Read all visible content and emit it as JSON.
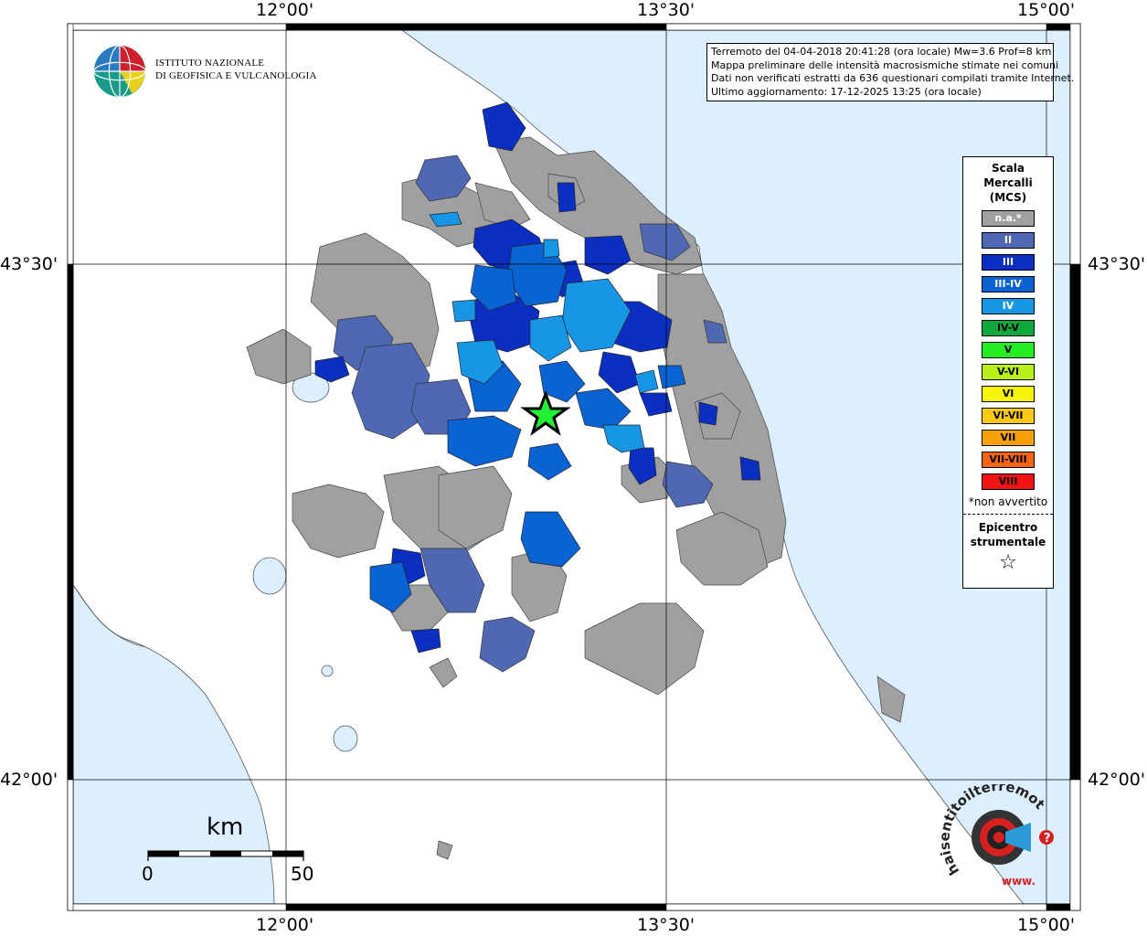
{
  "map": {
    "lon_labels": [
      "12°00'",
      "13°30'",
      "15°00'"
    ],
    "lat_labels": [
      "43°30'",
      "42°00'"
    ],
    "colors": {
      "sea": "#dcefff",
      "na": "#a0a0a0",
      "II": "#4f68b4",
      "III": "#0a2fc2",
      "III-IV": "#0a63d2",
      "IV": "#1796e6",
      "epicenter_fill": "#22ee33"
    }
  },
  "info": {
    "line1": "Terremoto del 04-04-2018 20:41:28 (ora locale) Mw=3.6 Prof=8 km",
    "line2": "Mappa preliminare delle intensità macrosismiche stimate nei comuni",
    "line3": "Dati non verificati estratti da 636 questionari compilati tramite Internet.",
    "line4": "Ultimo aggiornamento: 17-12-2025 13:25 (ora locale)"
  },
  "legend": {
    "title_lines": [
      "Scala",
      "Mercalli",
      "(MCS)"
    ],
    "items": [
      {
        "label": "n.a.*",
        "color": "#a0a0a0",
        "text_color": "#ffffff"
      },
      {
        "label": "II",
        "color": "#4f68b4",
        "text_color": "#ffffff"
      },
      {
        "label": "III",
        "color": "#0a2fc2",
        "text_color": "#ffffff"
      },
      {
        "label": "III-IV",
        "color": "#0a63d2",
        "text_color": "#ffffff"
      },
      {
        "label": "IV",
        "color": "#1796e6",
        "text_color": "#ffffff"
      },
      {
        "label": "IV-V",
        "color": "#0fa83c",
        "text_color": "#000000"
      },
      {
        "label": "V",
        "color": "#22ee22",
        "text_color": "#000000"
      },
      {
        "label": "V-VI",
        "color": "#b8f01a",
        "text_color": "#000000"
      },
      {
        "label": "VI",
        "color": "#f8f40a",
        "text_color": "#000000"
      },
      {
        "label": "VI-VII",
        "color": "#f8c814",
        "text_color": "#000000"
      },
      {
        "label": "VII",
        "color": "#f8a00a",
        "text_color": "#000000"
      },
      {
        "label": "VII-VIII",
        "color": "#f86414",
        "text_color": "#000000"
      },
      {
        "label": "VIII",
        "color": "#f01414",
        "text_color": "#000000"
      }
    ],
    "note": "*non avvertito",
    "epicenter_lines": [
      "Epicentro",
      "strumentale"
    ],
    "epicenter_symbol": "☆"
  },
  "ingv": {
    "line1": "ISTITUTO NAZIONALE",
    "line2": "DI GEOFISICA E VULCANOLOGIA"
  },
  "scale": {
    "unit": "km",
    "min": "0",
    "max": "50"
  },
  "haisentito": {
    "text": "haisentitoilterremoto.it",
    "prefix": "www."
  }
}
